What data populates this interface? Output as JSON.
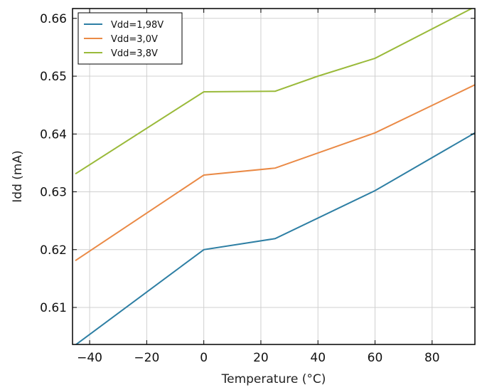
{
  "chart_data": {
    "type": "line",
    "xlabel": "Temperature (°C)",
    "ylabel": "Idd (mA)",
    "xlim": [
      -46,
      95
    ],
    "ylim": [
      0.6036,
      0.6617
    ],
    "xticks": [
      -40,
      -20,
      0,
      20,
      40,
      60,
      80
    ],
    "xtick_labels": [
      "−40",
      "−20",
      "0",
      "20",
      "40",
      "60",
      "80"
    ],
    "yticks": [
      0.61,
      0.62,
      0.63,
      0.64,
      0.65,
      0.66
    ],
    "ytick_labels": [
      "0.61",
      "0.62",
      "0.63",
      "0.64",
      "0.65",
      "0.66"
    ],
    "grid": true,
    "legend_position": "top-left",
    "series": [
      {
        "name": "Vdd=1,98V",
        "color": "#2e7fa4",
        "x": [
          -45,
          0,
          25,
          60,
          95
        ],
        "y": [
          0.6035,
          0.62,
          0.6219,
          0.6302,
          0.6402
        ]
      },
      {
        "name": "Vdd=3,0V",
        "color": "#ea8a46",
        "x": [
          -45,
          0,
          25,
          60,
          95
        ],
        "y": [
          0.6181,
          0.6329,
          0.6341,
          0.6402,
          0.6485
        ]
      },
      {
        "name": "Vdd=3,8V",
        "color": "#9aba3a",
        "x": [
          -45,
          0,
          25,
          40,
          60,
          95
        ],
        "y": [
          0.6331,
          0.6473,
          0.6474,
          0.65,
          0.6531,
          0.662
        ]
      }
    ]
  }
}
